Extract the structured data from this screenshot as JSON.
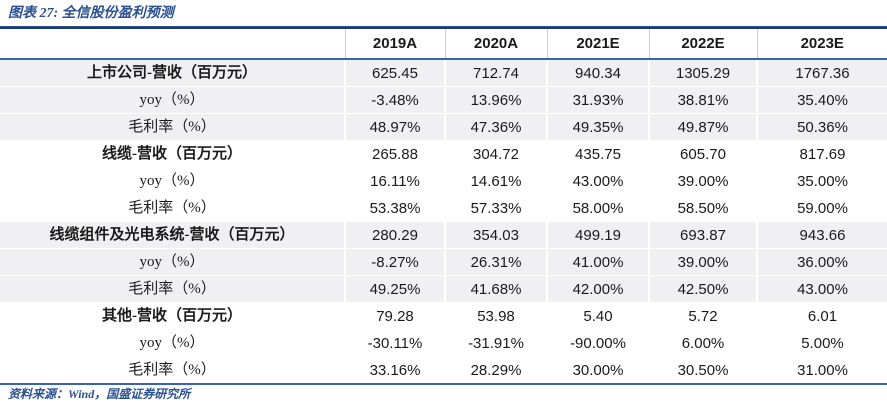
{
  "header": {
    "title": "图表 27: 全信股份盈利预测"
  },
  "footer": {
    "source": "资料来源：Wind，国盛证券研究所"
  },
  "colors": {
    "accent_blue": "#2d5291",
    "table_top_rule": "#1e3a66",
    "table_mid_rule": "#3a63ab",
    "band_gray": "#f0f0f2",
    "header_divider": "#c3cfe2",
    "text_dark": "#1a1a1a"
  },
  "chart_data": {
    "type": "table",
    "title": "全信股份盈利预测",
    "columns": [
      "2019A",
      "2020A",
      "2021E",
      "2022E",
      "2023E"
    ],
    "rows": [
      {
        "label": "上市公司-营收（百万元）",
        "group": true,
        "shaded": true,
        "values": [
          "625.45",
          "712.74",
          "940.34",
          "1305.29",
          "1767.36"
        ]
      },
      {
        "label": "yoy（%）",
        "group": false,
        "shaded": true,
        "values": [
          "-3.48%",
          "13.96%",
          "31.93%",
          "38.81%",
          "35.40%"
        ]
      },
      {
        "label": "毛利率（%）",
        "group": false,
        "shaded": true,
        "values": [
          "48.97%",
          "47.36%",
          "49.35%",
          "49.87%",
          "50.36%"
        ]
      },
      {
        "label": "线缆-营收（百万元）",
        "group": true,
        "shaded": false,
        "values": [
          "265.88",
          "304.72",
          "435.75",
          "605.70",
          "817.69"
        ]
      },
      {
        "label": "yoy（%）",
        "group": false,
        "shaded": false,
        "values": [
          "16.11%",
          "14.61%",
          "43.00%",
          "39.00%",
          "35.00%"
        ]
      },
      {
        "label": "毛利率（%）",
        "group": false,
        "shaded": false,
        "values": [
          "53.38%",
          "57.33%",
          "58.00%",
          "58.50%",
          "59.00%"
        ]
      },
      {
        "label": "线缆组件及光电系统-营收（百万元）",
        "group": true,
        "shaded": true,
        "values": [
          "280.29",
          "354.03",
          "499.19",
          "693.87",
          "943.66"
        ]
      },
      {
        "label": "yoy（%）",
        "group": false,
        "shaded": true,
        "values": [
          "-8.27%",
          "26.31%",
          "41.00%",
          "39.00%",
          "36.00%"
        ]
      },
      {
        "label": "毛利率（%）",
        "group": false,
        "shaded": true,
        "values": [
          "49.25%",
          "41.68%",
          "42.00%",
          "42.50%",
          "43.00%"
        ]
      },
      {
        "label": "其他-营收（百万元）",
        "group": true,
        "shaded": false,
        "values": [
          "79.28",
          "53.98",
          "5.40",
          "5.72",
          "6.01"
        ]
      },
      {
        "label": "yoy（%）",
        "group": false,
        "shaded": false,
        "values": [
          "-30.11%",
          "-31.91%",
          "-90.00%",
          "6.00%",
          "5.00%"
        ]
      },
      {
        "label": "毛利率（%）",
        "group": false,
        "shaded": false,
        "values": [
          "33.16%",
          "28.29%",
          "30.00%",
          "30.50%",
          "31.00%"
        ]
      }
    ]
  }
}
